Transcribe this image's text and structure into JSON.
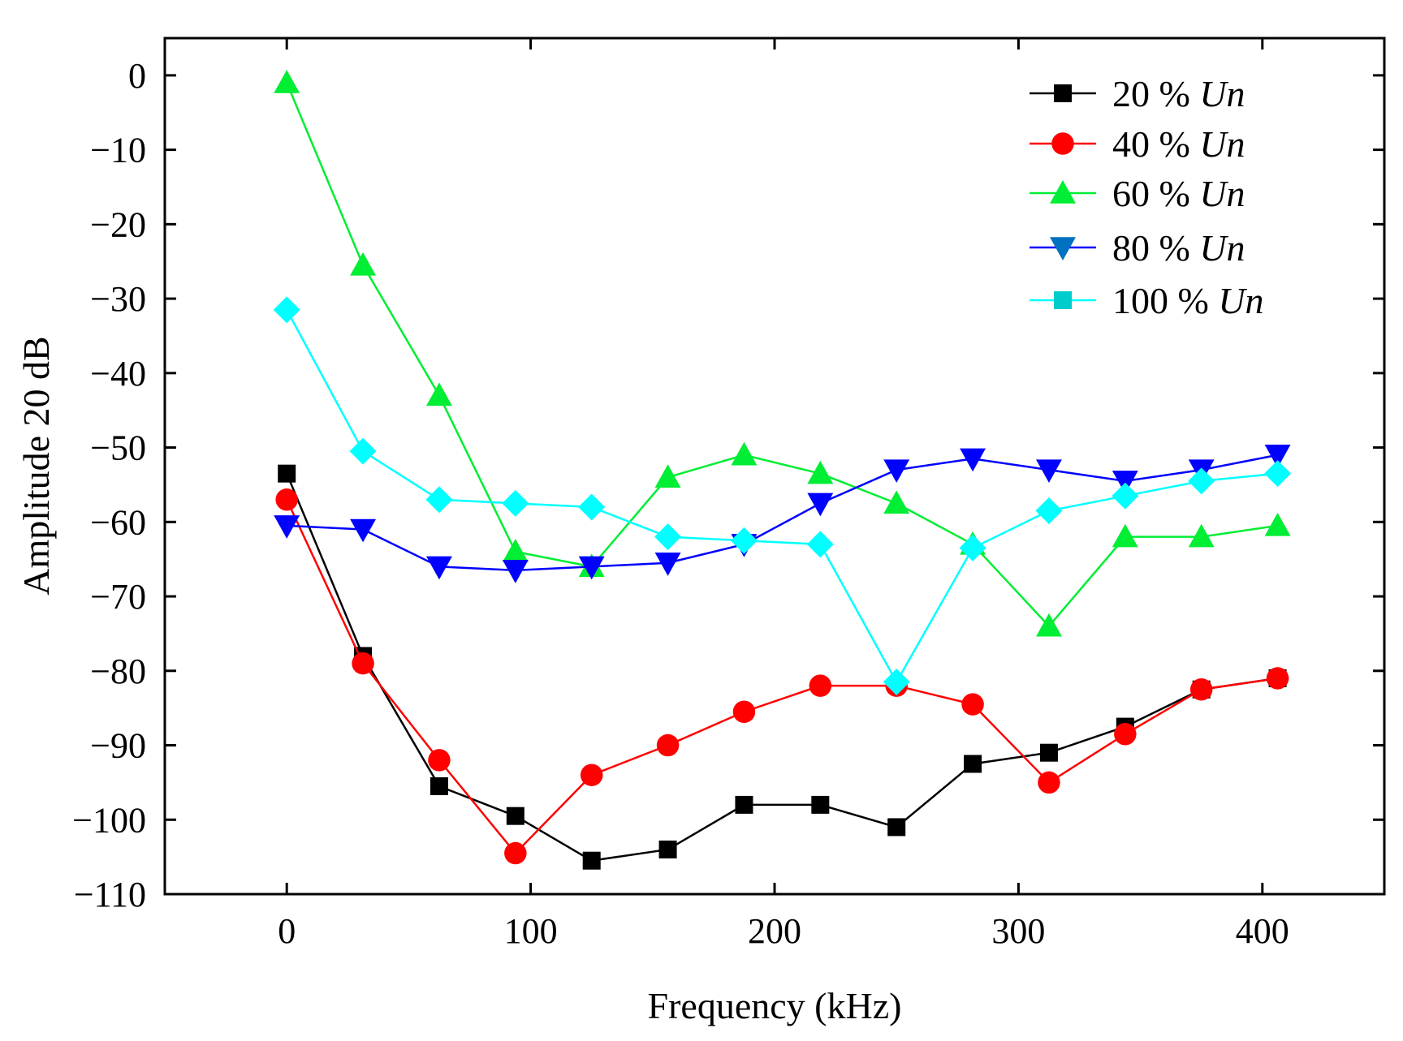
{
  "chart_data": {
    "type": "line",
    "xlabel": "Frequency (kHz)",
    "ylabel": "Amplitude 20 dB",
    "xlim": [
      -50,
      450
    ],
    "ylim": [
      -110,
      5
    ],
    "xticks": [
      0,
      100,
      200,
      300,
      400
    ],
    "yticks": [
      0,
      -10,
      -20,
      -30,
      -40,
      -50,
      -60,
      -70,
      -80,
      -90,
      -100,
      -110
    ],
    "grid": false,
    "legend_position": "top-right",
    "x": [
      0,
      31.25,
      62.5,
      93.75,
      125,
      156.25,
      187.5,
      218.75,
      250,
      281.25,
      312.5,
      343.75,
      375,
      406.25
    ],
    "series": [
      {
        "name": "20 % Un",
        "name_prefix": "20 % ",
        "name_italic": "Un",
        "color": "#000000",
        "marker": "square",
        "values": [
          -53.5,
          -78,
          -95.5,
          -99.5,
          -105.5,
          -104,
          -98,
          -98,
          -101,
          -92.5,
          -91,
          -87.5,
          -82.5,
          -81
        ]
      },
      {
        "name": "40 % Un",
        "name_prefix": "40 % ",
        "name_italic": "Un",
        "color": "#ff0000",
        "marker": "circle",
        "values": [
          -57,
          -79,
          -92,
          -104.5,
          -94,
          -90,
          -85.5,
          -82,
          -82,
          -84.5,
          -95,
          -88.5,
          -82.5,
          -81
        ]
      },
      {
        "name": "60 % Un",
        "name_prefix": "60 % ",
        "name_italic": "Un",
        "color": "#00ee33",
        "marker": "triangle-up",
        "values": [
          -1,
          -25.5,
          -43,
          -64,
          -66,
          -54,
          -51,
          -53.5,
          -57.5,
          -63,
          -74,
          -62,
          -62,
          -60.5
        ]
      },
      {
        "name": "80 % Un",
        "name_prefix": "80 % ",
        "name_italic": "Un",
        "color": "#0000ff",
        "legend_marker_color": "#0070c0",
        "marker": "triangle-down",
        "values": [
          -60.5,
          -61,
          -66,
          -66.5,
          -66,
          -65.5,
          -63,
          -57.5,
          -53,
          -51.5,
          -53,
          -54.5,
          -53,
          -51
        ]
      },
      {
        "name": "100 % Un",
        "name_prefix": "100 % ",
        "name_italic": "Un",
        "color": "#00ffff",
        "legend_marker_color": "#00cccc",
        "marker": "diamond",
        "legend_marker": "square",
        "values": [
          -31.5,
          -50.5,
          -57,
          -57.5,
          -58,
          -62,
          -62.5,
          -63,
          -81.5,
          -63.5,
          -58.5,
          -56.5,
          -54.5,
          -53.5
        ]
      }
    ]
  }
}
